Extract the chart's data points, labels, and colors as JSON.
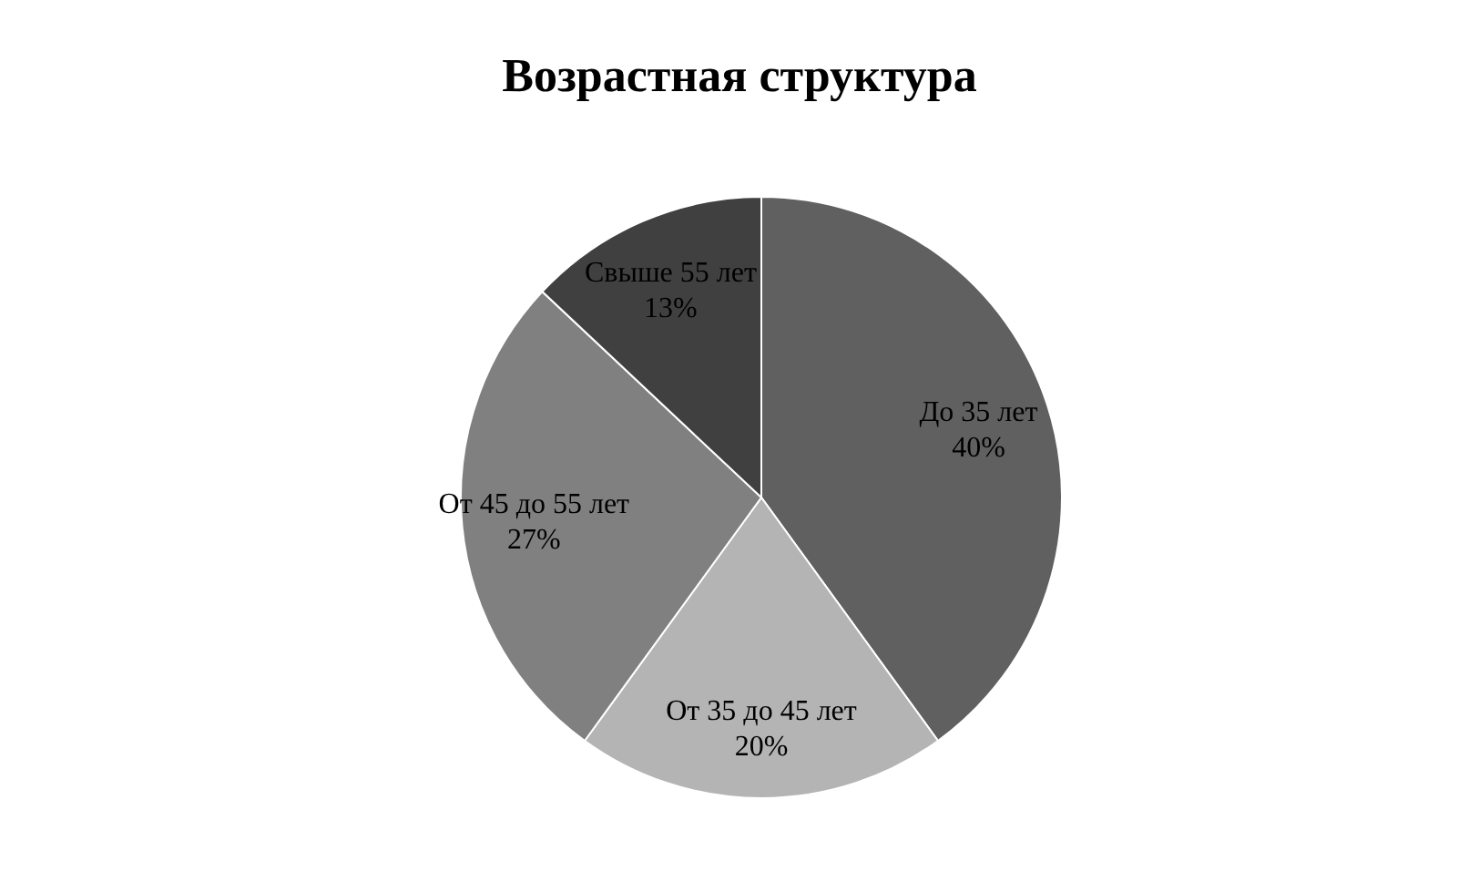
{
  "chart_data": {
    "type": "pie",
    "title": "Возрастная структура",
    "categories": [
      "До 35 лет",
      "От 35 до 45 лет",
      "От 45 до 55 лет",
      "Свыше 55 лет"
    ],
    "values": [
      40,
      20,
      27,
      13
    ],
    "value_labels": [
      "40%",
      "20%",
      "27%",
      "13%"
    ],
    "colors": [
      "#606060",
      "#b4b4b4",
      "#808080",
      "#404040"
    ],
    "legend": false
  }
}
